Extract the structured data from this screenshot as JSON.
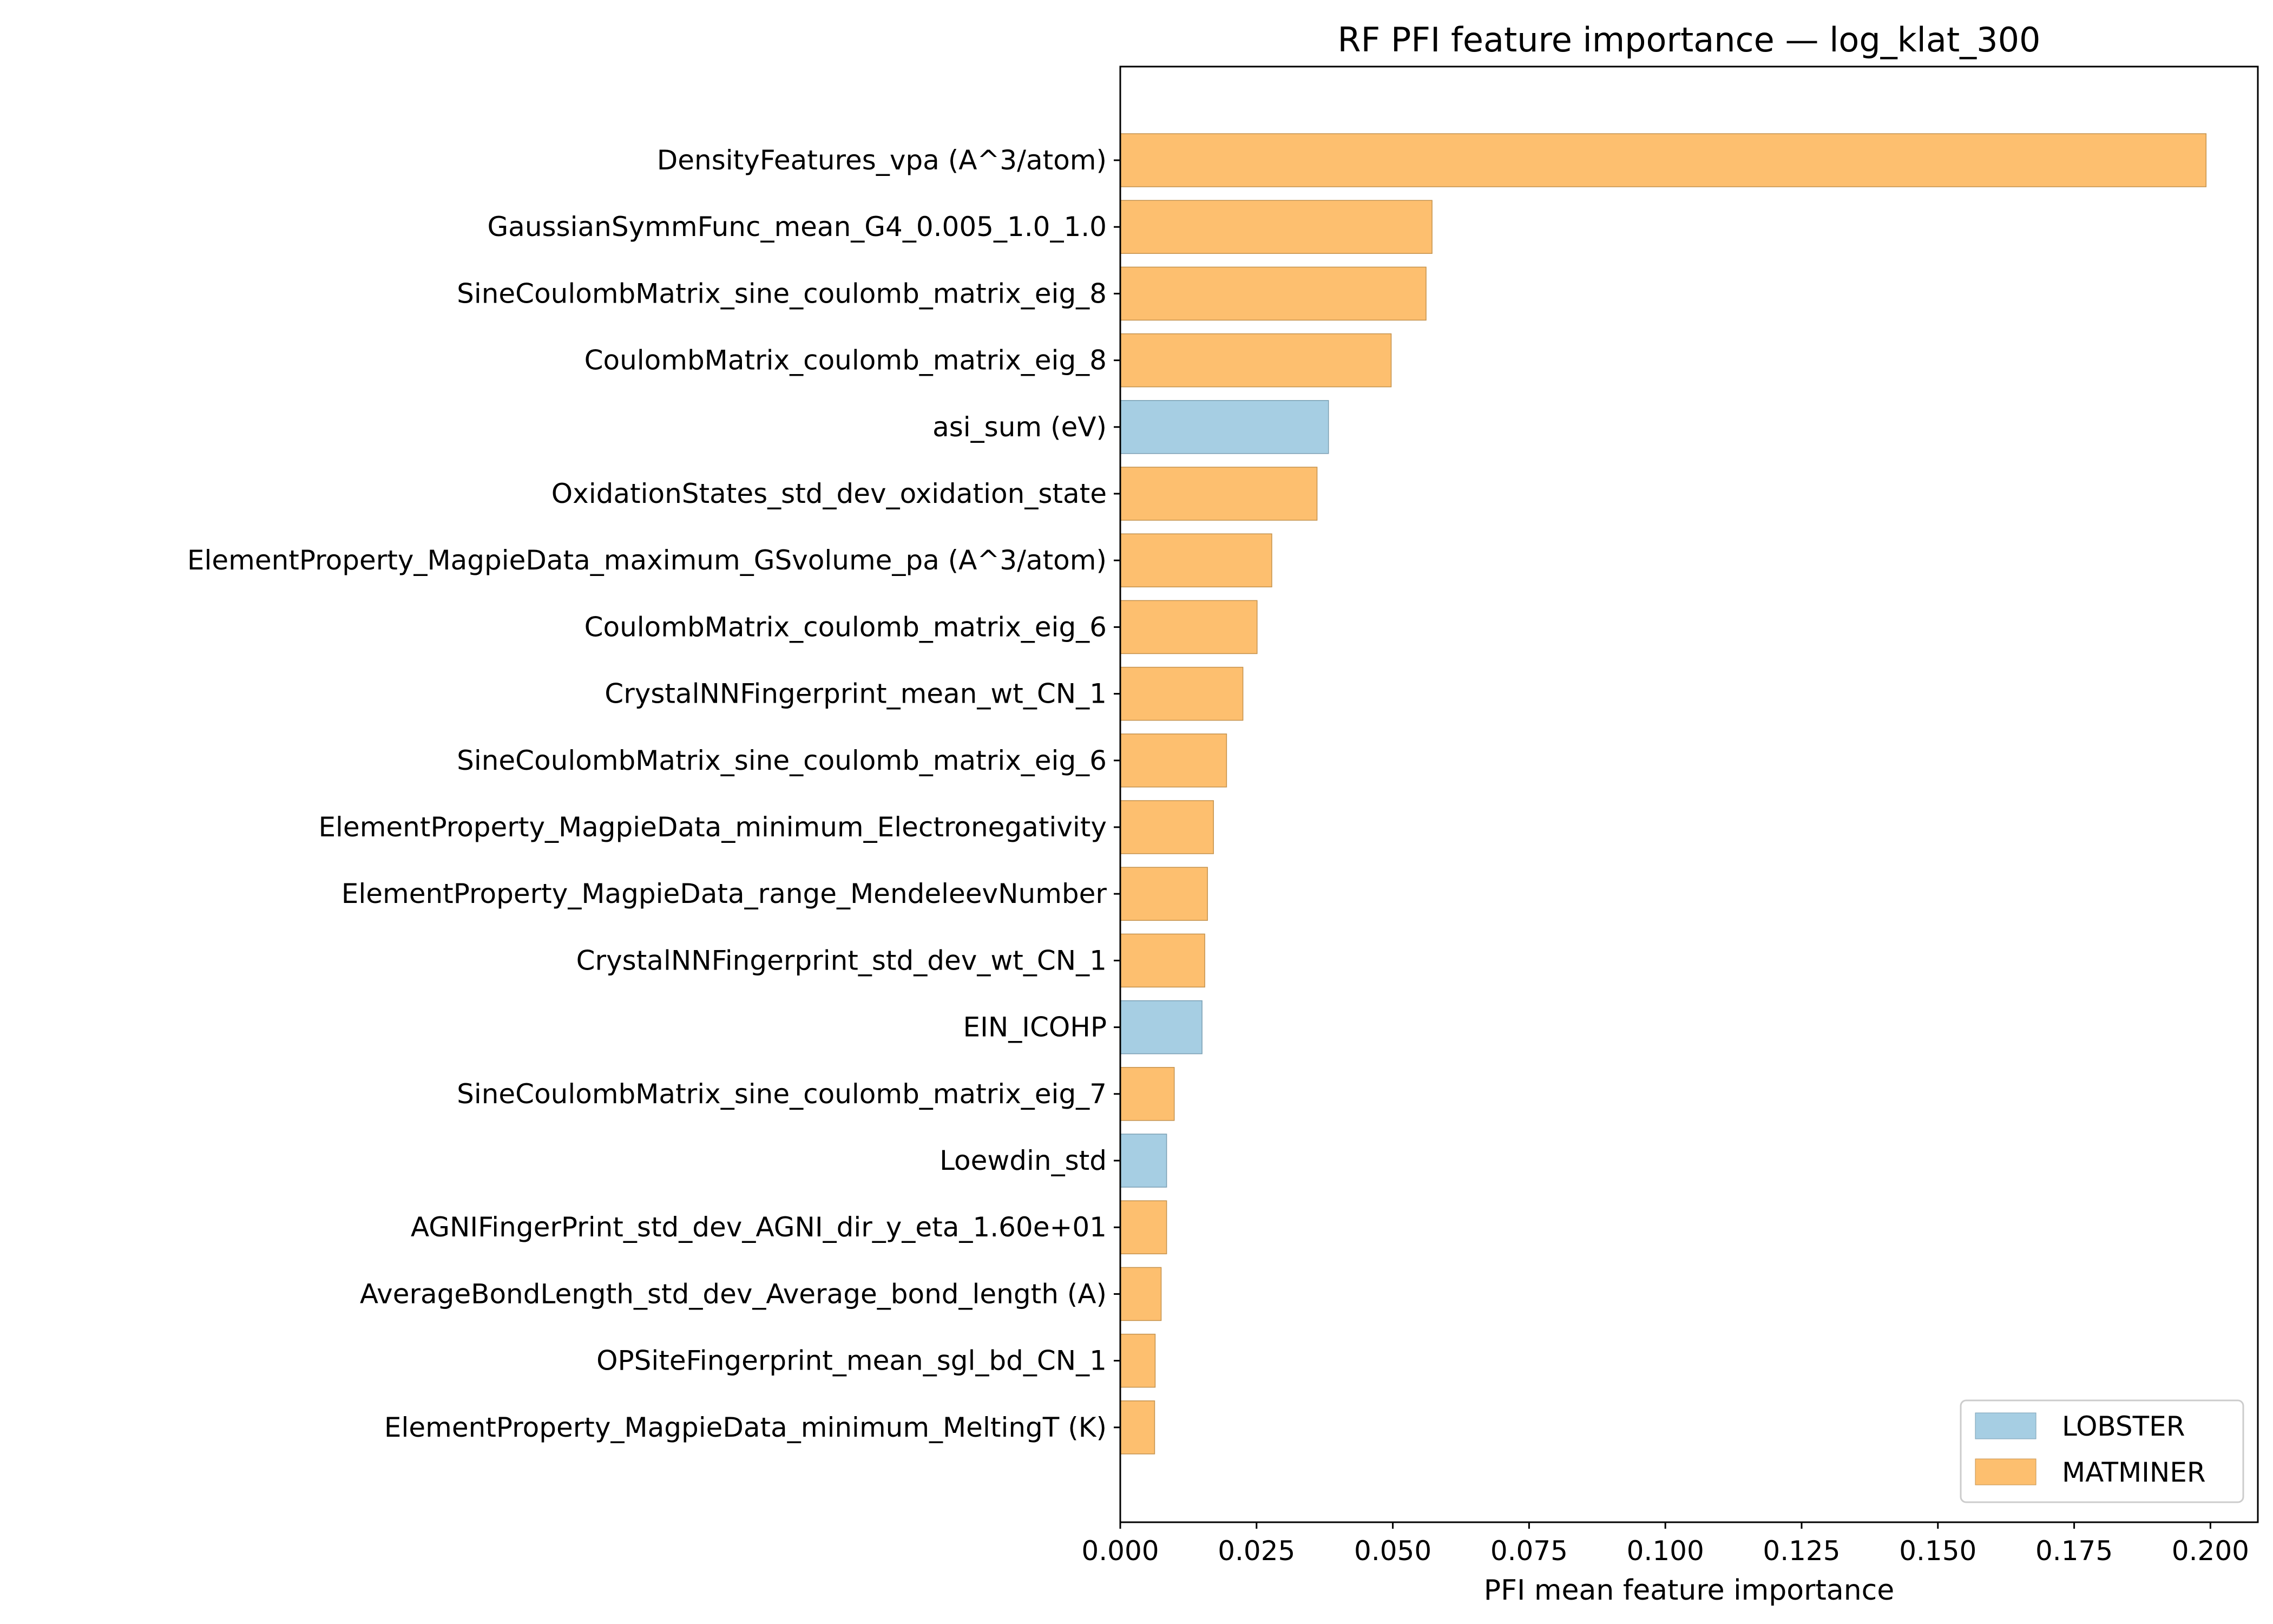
{
  "chart_data": {
    "type": "bar",
    "orientation": "horizontal",
    "title": "RF PFI feature importance — log_klat_300",
    "xlabel": "PFI mean feature importance",
    "ylabel": "",
    "xlim": [
      0,
      0.2087
    ],
    "xticks": [
      "0.000",
      "0.025",
      "0.050",
      "0.075",
      "0.100",
      "0.125",
      "0.150",
      "0.175",
      "0.200"
    ],
    "grid": false,
    "legend": {
      "placement": "bottom-right",
      "entries": [
        {
          "name": "LOBSTER",
          "color": "#a6cee3"
        },
        {
          "name": "MATMINER",
          "color": "#fdbf6f"
        }
      ]
    },
    "categories": [
      "DensityFeatures_vpa (A^3/atom)",
      "GaussianSymmFunc_mean_G4_0.005_1.0_1.0",
      "SineCoulombMatrix_sine_coulomb_matrix_eig_8",
      "CoulombMatrix_coulomb_matrix_eig_8",
      "asi_sum (eV)",
      "OxidationStates_std_dev_oxidation_state",
      "ElementProperty_MagpieData_maximum_GSvolume_pa (A^3/atom)",
      "CoulombMatrix_coulomb_matrix_eig_6",
      "CrystalNNFingerprint_mean_wt_CN_1",
      "SineCoulombMatrix_sine_coulomb_matrix_eig_6",
      "ElementProperty_MagpieData_minimum_Electronegativity",
      "ElementProperty_MagpieData_range_MendeleevNumber",
      "CrystalNNFingerprint_std_dev_wt_CN_1",
      "EIN_ICOHP",
      "SineCoulombMatrix_sine_coulomb_matrix_eig_7",
      "Loewdin_std",
      "AGNIFingerPrint_std_dev_AGNI_dir_y_eta_1.60e+01",
      "AverageBondLength_std_dev_Average_bond_length (A)",
      "OPSiteFingerprint_mean_sgl_bd_CN_1",
      "ElementProperty_MagpieData_minimum_MeltingT (K)"
    ],
    "values": [
      0.1992,
      0.0572,
      0.0561,
      0.0497,
      0.0382,
      0.0361,
      0.0278,
      0.0251,
      0.0225,
      0.0195,
      0.0171,
      0.016,
      0.0155,
      0.015,
      0.0099,
      0.0085,
      0.0085,
      0.0075,
      0.0064,
      0.0063
    ],
    "groups": [
      "MATMINER",
      "MATMINER",
      "MATMINER",
      "MATMINER",
      "LOBSTER",
      "MATMINER",
      "MATMINER",
      "MATMINER",
      "MATMINER",
      "MATMINER",
      "MATMINER",
      "MATMINER",
      "MATMINER",
      "LOBSTER",
      "MATMINER",
      "LOBSTER",
      "MATMINER",
      "MATMINER",
      "MATMINER",
      "MATMINER"
    ]
  }
}
